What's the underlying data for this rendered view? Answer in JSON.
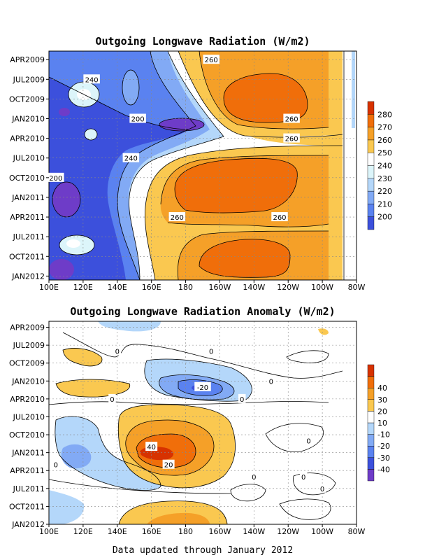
{
  "footer": "Data updated through January 2012",
  "chart_data": [
    {
      "type": "heatmap",
      "title": "Outgoing Longwave Radiation (W/m2)",
      "x_tick_labels": [
        "100E",
        "120E",
        "140E",
        "160E",
        "180",
        "160W",
        "140W",
        "120W",
        "100W",
        "80W"
      ],
      "y_tick_labels": [
        "APR2009",
        "JUL2009",
        "OCT2009",
        "JAN2010",
        "APR2010",
        "JUL2010",
        "OCT2010",
        "JAN2011",
        "APR2011",
        "JUL2011",
        "OCT2011",
        "JAN2012"
      ],
      "colorbar": {
        "levels": [
          200,
          210,
          220,
          230,
          240,
          250,
          260,
          270,
          280
        ],
        "colors": [
          "#3c50dc",
          "#5a82f0",
          "#82aaf5",
          "#b4d7fa",
          "#dcf5fa",
          "#ffffff",
          "#fac850",
          "#f5a028",
          "#f06e0a",
          "#d73200"
        ]
      },
      "contour_labels": [
        {
          "text": "260",
          "x": "165W",
          "y": "APR2009"
        },
        {
          "text": "240",
          "x": "125E",
          "y": "JUL2009"
        },
        {
          "text": "200",
          "x": "152E",
          "y": "JAN2010"
        },
        {
          "text": "260",
          "x": "118W",
          "y": "JAN2010"
        },
        {
          "text": "260",
          "x": "118W",
          "y": "APR2010"
        },
        {
          "text": "240",
          "x": "148E",
          "y": "JUL2010"
        },
        {
          "text": "200",
          "x": "104E",
          "y": "OCT2010"
        },
        {
          "text": "260",
          "x": "175E",
          "y": "APR2011"
        },
        {
          "text": "260",
          "x": "125W",
          "y": "APR2011"
        }
      ]
    },
    {
      "type": "heatmap",
      "title": "Outgoing Longwave Radiation Anomaly (W/m2)",
      "x_tick_labels": [
        "100E",
        "120E",
        "140E",
        "160E",
        "180",
        "160W",
        "140W",
        "120W",
        "100W",
        "80W"
      ],
      "y_tick_labels": [
        "APR2009",
        "JUL2009",
        "OCT2009",
        "JAN2010",
        "APR2010",
        "JUL2010",
        "OCT2010",
        "JAN2011",
        "APR2011",
        "JUL2011",
        "OCT2011",
        "JAN2012"
      ],
      "colorbar": {
        "levels": [
          -40,
          -30,
          -20,
          -10,
          10,
          20,
          30,
          40
        ],
        "colors": [
          "#6e3cc8",
          "#3c50dc",
          "#5a82f0",
          "#82aaf5",
          "#b4d7fa",
          "#ffffff",
          "#fac850",
          "#f5a028",
          "#f06e0a",
          "#d73200"
        ]
      },
      "contour_labels": [
        {
          "text": "0",
          "x": "140E",
          "y": "AUG2009"
        },
        {
          "text": "0",
          "x": "165W",
          "y": "AUG2009"
        },
        {
          "text": "-20",
          "x": "170W",
          "y": "FEB2010"
        },
        {
          "text": "0",
          "x": "130W",
          "y": "JAN2010"
        },
        {
          "text": "0",
          "x": "137E",
          "y": "APR2010"
        },
        {
          "text": "0",
          "x": "147W",
          "y": "APR2010"
        },
        {
          "text": "0",
          "x": "108W",
          "y": "NOV2010"
        },
        {
          "text": "40",
          "x": "160E",
          "y": "DEC2010"
        },
        {
          "text": "20",
          "x": "170E",
          "y": "MAR2011"
        },
        {
          "text": "0",
          "x": "104E",
          "y": "MAR2011"
        },
        {
          "text": "0",
          "x": "140W",
          "y": "MAY2011"
        },
        {
          "text": "0",
          "x": "111W",
          "y": "MAY2011"
        },
        {
          "text": "0",
          "x": "100W",
          "y": "JUL2011"
        }
      ]
    }
  ]
}
